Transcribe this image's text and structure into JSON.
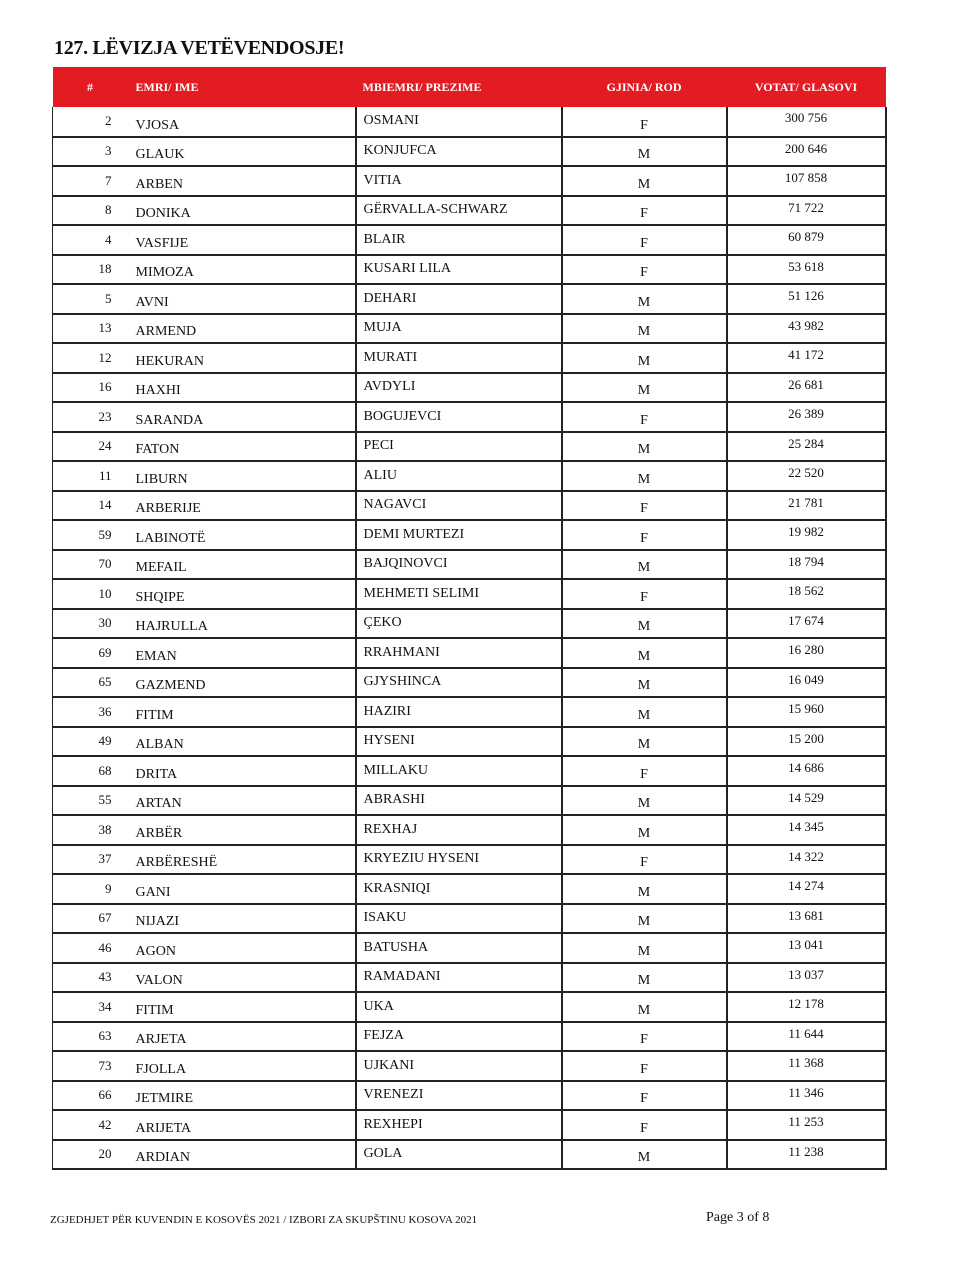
{
  "title": "127. LËVIZJA VETËVENDOSJE!",
  "table": {
    "headers": [
      "#",
      "EMRI/ IME",
      "MBIEMRI/ PREZIME",
      "GJINIA/ ROD",
      "VOTAT/ GLASOVI"
    ],
    "rows": [
      [
        "2",
        "VJOSA",
        "OSMANI",
        "F",
        "300 756"
      ],
      [
        "3",
        "GLAUK",
        "KONJUFCA",
        "M",
        "200 646"
      ],
      [
        "7",
        "ARBEN",
        "VITIA",
        "M",
        "107 858"
      ],
      [
        "8",
        "DONIKA",
        "GËRVALLA-SCHWARZ",
        "F",
        "71 722"
      ],
      [
        "4",
        "VASFIJE",
        "BLAIR",
        "F",
        "60 879"
      ],
      [
        "18",
        "MIMOZA",
        "KUSARI LILA",
        "F",
        "53 618"
      ],
      [
        "5",
        "AVNI",
        "DEHARI",
        "M",
        "51 126"
      ],
      [
        "13",
        "ARMEND",
        "MUJA",
        "M",
        "43 982"
      ],
      [
        "12",
        "HEKURAN",
        "MURATI",
        "M",
        "41 172"
      ],
      [
        "16",
        "HAXHI",
        "AVDYLI",
        "M",
        "26 681"
      ],
      [
        "23",
        "SARANDA",
        "BOGUJEVCI",
        "F",
        "26 389"
      ],
      [
        "24",
        "FATON",
        "PECI",
        "M",
        "25 284"
      ],
      [
        "11",
        "LIBURN",
        "ALIU",
        "M",
        "22 520"
      ],
      [
        "14",
        "ARBERIJE",
        "NAGAVCI",
        "F",
        "21 781"
      ],
      [
        "59",
        "LABINOTË",
        "DEMI MURTEZI",
        "F",
        "19 982"
      ],
      [
        "70",
        "MEFAIL",
        "BAJQINOVCI",
        "M",
        "18 794"
      ],
      [
        "10",
        "SHQIPE",
        "MEHMETI SELIMI",
        "F",
        "18 562"
      ],
      [
        "30",
        "HAJRULLA",
        "ÇEKO",
        "M",
        "17 674"
      ],
      [
        "69",
        "EMAN",
        "RRAHMANI",
        "M",
        "16 280"
      ],
      [
        "65",
        "GAZMEND",
        "GJYSHINCA",
        "M",
        "16 049"
      ],
      [
        "36",
        "FITIM",
        "HAZIRI",
        "M",
        "15 960"
      ],
      [
        "49",
        "ALBAN",
        "HYSENI",
        "M",
        "15 200"
      ],
      [
        "68",
        "DRITA",
        "MILLAKU",
        "F",
        "14 686"
      ],
      [
        "55",
        "ARTAN",
        "ABRASHI",
        "M",
        "14 529"
      ],
      [
        "38",
        "ARBËR",
        "REXHAJ",
        "M",
        "14 345"
      ],
      [
        "37",
        "ARBËRESHË",
        "KRYEZIU HYSENI",
        "F",
        "14 322"
      ],
      [
        "9",
        "GANI",
        "KRASNIQI",
        "M",
        "14 274"
      ],
      [
        "67",
        "NIJAZI",
        "ISAKU",
        "M",
        "13 681"
      ],
      [
        "46",
        "AGON",
        "BATUSHA",
        "M",
        "13 041"
      ],
      [
        "43",
        "VALON",
        "RAMADANI",
        "M",
        "13 037"
      ],
      [
        "34",
        "FITIM",
        "UKA",
        "M",
        "12 178"
      ],
      [
        "63",
        "ARJETA",
        "FEJZA",
        "F",
        "11 644"
      ],
      [
        "73",
        "FJOLLA",
        "UJKANI",
        "F",
        "11 368"
      ],
      [
        "66",
        "JETMIRE",
        "VRENEZI",
        "F",
        "11 346"
      ],
      [
        "42",
        "ARIJETA",
        "REXHEPI",
        "F",
        "11 253"
      ],
      [
        "20",
        "ARDIAN",
        "GOLA",
        "M",
        "11 238"
      ]
    ]
  },
  "footer": {
    "election": "ZGJEDHJET PËR KUVENDIN E KOSOVËS 2021 / IZBORI ZA SKUPŠTINU KOSOVA 2021",
    "page": "Page 3 of 8"
  },
  "colors": {
    "header_bg": "#e31b23",
    "header_text": "#ffffff"
  }
}
